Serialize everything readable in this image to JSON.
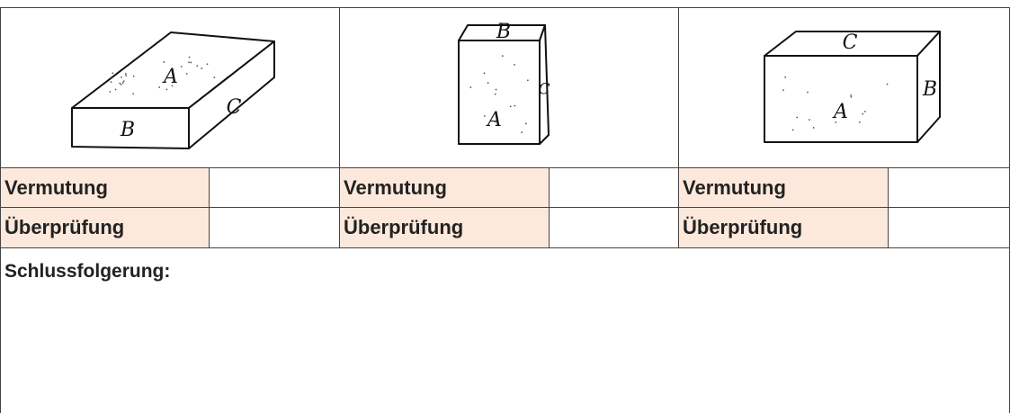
{
  "table": {
    "drawings": [
      {
        "top": "A",
        "front": "B",
        "side": "C"
      },
      {
        "front": "A",
        "top": "B",
        "side": "C"
      },
      {
        "front": "A",
        "side": "B",
        "top": "C"
      }
    ],
    "rows": [
      [
        "Vermutung",
        "Vermutung",
        "Vermutung"
      ],
      [
        "Überprüfung",
        "Überprüfung",
        "Überprüfung"
      ]
    ],
    "conclusion": "Schlussfolgerung:"
  }
}
